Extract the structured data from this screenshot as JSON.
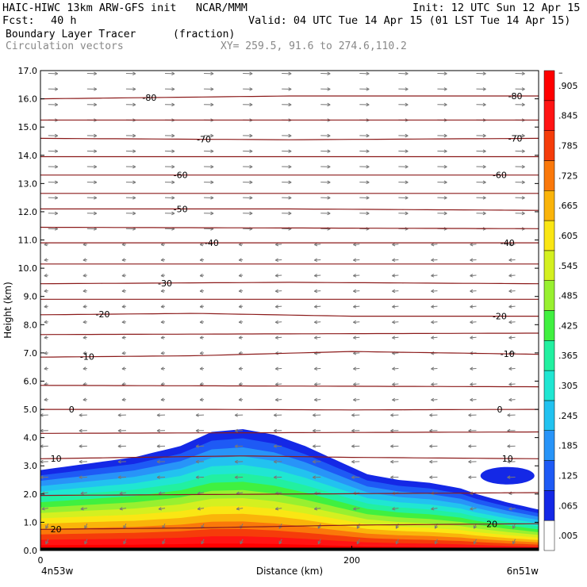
{
  "header": {
    "title_left": "HAIC-HIWC 13km ARW-GFS init   NCAR/MMM",
    "init": "Init: 12 UTC Sun 12 Apr 15",
    "fcst_label": "Fcst:",
    "fcst_value": "40 h",
    "valid": "Valid: 04 UTC Tue 14 Apr 15 (01 LST Tue 14 Apr 15)",
    "field_name": "Boundary Layer Tracer",
    "field_units": "(fraction)",
    "vector_label": "Circulation vectors",
    "xy_label": "XY= 259.5, 91.6 to 274.6,110.2"
  },
  "colors": {
    "contour": "#8b1a1a",
    "vector": "#777777",
    "scale": [
      "#ffffff",
      "#1428e6",
      "#1e5af5",
      "#2894f8",
      "#22c2f0",
      "#20e6d2",
      "#22f0a0",
      "#40f040",
      "#98f030",
      "#d4f020",
      "#fae614",
      "#fab40a",
      "#fa780a",
      "#f53c0a",
      "#ff1414",
      "#ff0000"
    ]
  },
  "chart_data": {
    "type": "heatmap",
    "title": "Boundary Layer Tracer",
    "ylabel": "Height (km)",
    "xlabel": "Distance (km)",
    "ylim": [
      0,
      17
    ],
    "xlim": [
      0,
      320
    ],
    "y_ticks": [
      "0.0",
      "1.0",
      "2.0",
      "3.0",
      "4.0",
      "5.0",
      "6.0",
      "7.0",
      "8.0",
      "9.0",
      "10.0",
      "11.0",
      "12.0",
      "13.0",
      "14.0",
      "15.0",
      "16.0",
      "17.0"
    ],
    "x_ticks": [
      {
        "value": 0,
        "label": "0"
      },
      {
        "value": 200,
        "label": "200"
      }
    ],
    "x_end_labels": {
      "left": "4n53w",
      "right": "6n51w"
    },
    "colorbar_labels": [
      ".005",
      ".065",
      ".125",
      ".185",
      ".245",
      ".305",
      ".365",
      ".425",
      ".485",
      ".545",
      ".605",
      ".665",
      ".725",
      ".785",
      ".845",
      ".905",
      "–"
    ],
    "tracer_top_km": [
      [
        0,
        2.85
      ],
      [
        20,
        3.0
      ],
      [
        60,
        3.3
      ],
      [
        90,
        3.7
      ],
      [
        110,
        4.2
      ],
      [
        130,
        4.3
      ],
      [
        150,
        4.1
      ],
      [
        170,
        3.7
      ],
      [
        190,
        3.2
      ],
      [
        210,
        2.7
      ],
      [
        230,
        2.5
      ],
      [
        250,
        2.4
      ],
      [
        270,
        2.2
      ],
      [
        280,
        2.0
      ],
      [
        300,
        1.7
      ],
      [
        320,
        1.45
      ]
    ],
    "isotherms": [
      {
        "label": "20",
        "labels_at": [
          10,
          290
        ],
        "heights": [
          [
            0,
            0.75
          ],
          [
            100,
            0.8
          ],
          [
            200,
            0.9
          ],
          [
            320,
            0.95
          ]
        ]
      },
      {
        "label": "10",
        "labels_at": [
          10,
          300
        ],
        "heights": [
          [
            0,
            3.25
          ],
          [
            60,
            3.3
          ],
          [
            130,
            3.35
          ],
          [
            200,
            3.3
          ],
          [
            320,
            3.25
          ]
        ]
      },
      {
        "label": "0",
        "labels_at": [
          20,
          295
        ],
        "heights": [
          [
            0,
            5.0
          ],
          [
            100,
            5.0
          ],
          [
            200,
            4.98
          ],
          [
            320,
            5.0
          ]
        ]
      },
      {
        "label": "-10",
        "labels_at": [
          30,
          300
        ],
        "heights": [
          [
            0,
            6.85
          ],
          [
            100,
            6.9
          ],
          [
            200,
            7.05
          ],
          [
            320,
            6.95
          ]
        ]
      },
      {
        "label": "-20",
        "labels_at": [
          40,
          295
        ],
        "heights": [
          [
            0,
            8.35
          ],
          [
            100,
            8.4
          ],
          [
            200,
            8.3
          ],
          [
            320,
            8.3
          ]
        ]
      },
      {
        "label": "-30",
        "labels_at": [
          80
        ],
        "heights": [
          [
            0,
            9.45
          ],
          [
            160,
            9.5
          ],
          [
            320,
            9.45
          ]
        ]
      },
      {
        "label": "-40",
        "labels_at": [
          110,
          300
        ],
        "heights": [
          [
            0,
            10.9
          ],
          [
            160,
            10.9
          ],
          [
            320,
            10.9
          ]
        ]
      },
      {
        "label": "-50",
        "labels_at": [
          90
        ],
        "heights": [
          [
            0,
            12.1
          ],
          [
            160,
            12.1
          ],
          [
            320,
            12.05
          ]
        ]
      },
      {
        "label": "-60",
        "labels_at": [
          90,
          295
        ],
        "heights": [
          [
            0,
            13.3
          ],
          [
            160,
            13.3
          ],
          [
            320,
            13.3
          ]
        ]
      },
      {
        "label": "-70",
        "labels_at": [
          105,
          305
        ],
        "heights": [
          [
            0,
            14.6
          ],
          [
            160,
            14.55
          ],
          [
            320,
            14.6
          ]
        ]
      },
      {
        "label": "-80",
        "labels_at": [
          70,
          305
        ],
        "heights": [
          [
            0,
            16.0
          ],
          [
            160,
            16.1
          ],
          [
            320,
            16.1
          ]
        ]
      }
    ],
    "extra_isotherms": [
      [
        [
          0,
          1.95
        ],
        [
          320,
          2.05
        ]
      ],
      [
        [
          0,
          4.15
        ],
        [
          320,
          4.2
        ]
      ],
      [
        [
          0,
          5.85
        ],
        [
          320,
          5.8
        ]
      ],
      [
        [
          0,
          7.65
        ],
        [
          320,
          7.7
        ]
      ],
      [
        [
          0,
          8.9
        ],
        [
          320,
          8.9
        ]
      ],
      [
        [
          0,
          10.15
        ],
        [
          320,
          10.15
        ]
      ],
      [
        [
          0,
          11.45
        ],
        [
          320,
          11.4
        ]
      ],
      [
        [
          0,
          12.65
        ],
        [
          320,
          12.65
        ]
      ],
      [
        [
          0,
          13.95
        ],
        [
          320,
          13.95
        ]
      ],
      [
        [
          0,
          15.25
        ],
        [
          320,
          15.25
        ]
      ]
    ]
  }
}
